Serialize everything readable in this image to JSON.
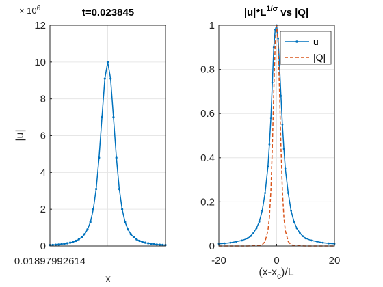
{
  "chart_data": [
    {
      "type": "line",
      "title": "t=0.023845",
      "exponent_label": "× 10",
      "exponent_value": "6",
      "xlabel": "x",
      "ylabel": "|u|",
      "x_tick_label": "0.01897992614",
      "yticks": [
        "0",
        "2",
        "4",
        "6",
        "8",
        "10",
        "12"
      ],
      "ylim": [
        0,
        12
      ],
      "grid": true,
      "series": [
        {
          "color": "#0072BD",
          "marker": "dot",
          "x": [
            -1.0,
            -0.95,
            -0.9,
            -0.85,
            -0.8,
            -0.75,
            -0.7,
            -0.65,
            -0.6,
            -0.55,
            -0.5,
            -0.45,
            -0.4,
            -0.35,
            -0.3,
            -0.25,
            -0.2,
            -0.15,
            -0.1,
            -0.05,
            0.0,
            0.05,
            0.1,
            0.15,
            0.2,
            0.25,
            0.3,
            0.35,
            0.4,
            0.45,
            0.5,
            0.55,
            0.6,
            0.65,
            0.7,
            0.75,
            0.8,
            0.85,
            0.9,
            0.95,
            1.0
          ],
          "y": [
            0.05,
            0.06,
            0.07,
            0.08,
            0.1,
            0.12,
            0.15,
            0.18,
            0.22,
            0.28,
            0.36,
            0.48,
            0.64,
            0.9,
            1.3,
            2.0,
            3.1,
            4.8,
            7.0,
            9.1,
            10.0,
            9.1,
            7.0,
            4.8,
            3.1,
            2.0,
            1.3,
            0.9,
            0.64,
            0.48,
            0.36,
            0.28,
            0.22,
            0.18,
            0.15,
            0.12,
            0.1,
            0.08,
            0.07,
            0.06,
            0.05
          ]
        }
      ]
    },
    {
      "type": "line",
      "title_main": "|u|*L",
      "title_sup": "1/σ",
      "title_tail": " vs |Q|",
      "xlabel_main": "(x-x",
      "xlabel_sub": "c",
      "xlabel_tail": ")/L",
      "xticks": [
        "-20",
        "0",
        "20"
      ],
      "yticks": [
        "0",
        "0.2",
        "0.4",
        "0.6",
        "0.8",
        "1"
      ],
      "xlim": [
        -20,
        20
      ],
      "ylim": [
        0,
        1
      ],
      "grid": true,
      "legend": "top-right",
      "series": [
        {
          "name": "u",
          "color": "#0072BD",
          "style": "solid-dots",
          "x": [
            -20,
            -18,
            -16,
            -14,
            -12,
            -10,
            -9,
            -8,
            -7,
            -6,
            -5,
            -4,
            -3,
            -2.5,
            -2,
            -1.5,
            -1,
            -0.5,
            0,
            0.5,
            1,
            1.5,
            2,
            2.5,
            3,
            4,
            5,
            6,
            7,
            8,
            9,
            10,
            12,
            14,
            16,
            18,
            20
          ],
          "y": [
            0.01,
            0.012,
            0.015,
            0.02,
            0.025,
            0.035,
            0.045,
            0.06,
            0.08,
            0.11,
            0.16,
            0.24,
            0.36,
            0.46,
            0.58,
            0.74,
            0.9,
            0.98,
            1.0,
            0.94,
            0.82,
            0.68,
            0.55,
            0.44,
            0.35,
            0.24,
            0.16,
            0.11,
            0.08,
            0.06,
            0.045,
            0.035,
            0.025,
            0.02,
            0.015,
            0.012,
            0.01
          ]
        },
        {
          "name": "|Q|",
          "color": "#D95319",
          "style": "dashed",
          "x": [
            -20,
            -10,
            -6,
            -5,
            -4,
            -3,
            -2.5,
            -2,
            -1.5,
            -1,
            -0.5,
            0,
            0.5,
            1,
            1.5,
            2,
            2.5,
            3,
            4,
            5,
            6,
            10,
            20
          ],
          "y": [
            0,
            0,
            0.002,
            0.006,
            0.02,
            0.07,
            0.13,
            0.25,
            0.45,
            0.7,
            0.92,
            1.0,
            0.92,
            0.7,
            0.45,
            0.25,
            0.13,
            0.07,
            0.02,
            0.006,
            0.002,
            0,
            0
          ]
        }
      ]
    }
  ]
}
